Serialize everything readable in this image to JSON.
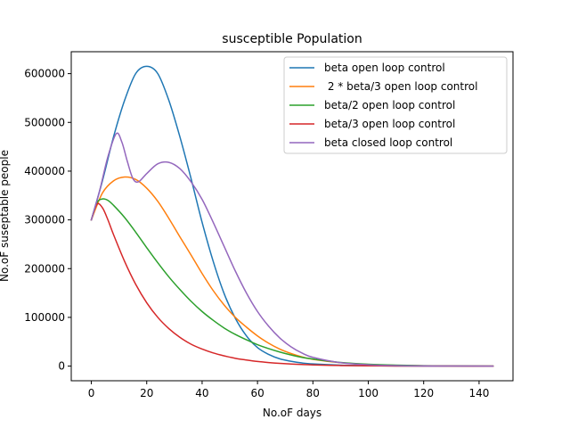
{
  "chart_data": {
    "type": "line",
    "title": "susceptible Population",
    "xlabel": "No.oF days",
    "ylabel": "No.oF suseptable people",
    "xlim": [
      -7.25,
      152.25
    ],
    "ylim": [
      -30000,
      645000
    ],
    "xticks": [
      0,
      20,
      40,
      60,
      80,
      100,
      120,
      140
    ],
    "yticks": [
      0,
      100000,
      200000,
      300000,
      400000,
      500000,
      600000
    ],
    "xtick_labels": [
      "0",
      "20",
      "40",
      "60",
      "80",
      "100",
      "120",
      "140"
    ],
    "ytick_labels": [
      "0",
      "100000",
      "200000",
      "300000",
      "400000",
      "500000",
      "600000"
    ],
    "grid": false,
    "legend_position": "upper right",
    "series": [
      {
        "name": "beta open loop control",
        "color": "#1f77b4",
        "x": [
          0,
          4,
          8,
          12,
          16,
          20,
          24,
          28,
          32,
          36,
          40,
          44,
          48,
          52,
          56,
          60,
          64,
          68,
          72,
          76,
          80,
          90,
          100,
          110,
          120,
          130,
          145
        ],
        "y": [
          300000,
          380000,
          470000,
          545000,
          600000,
          615000,
          600000,
          545000,
          470000,
          385000,
          295000,
          215000,
          148000,
          98000,
          62000,
          38000,
          24000,
          15000,
          10000,
          6500,
          4500,
          2000,
          900,
          400,
          200,
          100,
          0
        ]
      },
      {
        "name": " 2 * beta/3 open loop control",
        "color": "#ff7f0e",
        "x": [
          0,
          4,
          8,
          12,
          16,
          20,
          24,
          28,
          32,
          36,
          40,
          44,
          48,
          52,
          56,
          60,
          64,
          68,
          72,
          76,
          80,
          90,
          100,
          110,
          120,
          130,
          145
        ],
        "y": [
          300000,
          355000,
          380000,
          388000,
          383000,
          365000,
          338000,
          303000,
          265000,
          228000,
          190000,
          155000,
          125000,
          100000,
          80000,
          62000,
          47000,
          35000,
          26000,
          19000,
          14000,
          7000,
          3300,
          1500,
          700,
          300,
          0
        ]
      },
      {
        "name": "beta/2 open loop control",
        "color": "#2ca02c",
        "x": [
          0,
          2,
          4,
          6,
          8,
          12,
          16,
          20,
          24,
          28,
          32,
          36,
          40,
          44,
          48,
          52,
          56,
          60,
          64,
          68,
          72,
          76,
          80,
          90,
          100,
          110,
          120,
          130,
          145
        ],
        "y": [
          300000,
          335000,
          343000,
          340000,
          330000,
          305000,
          275000,
          243000,
          212000,
          183000,
          157000,
          133000,
          112000,
          94000,
          78000,
          65000,
          54000,
          44000,
          36000,
          29000,
          23000,
          18000,
          14500,
          7500,
          3800,
          1900,
          900,
          400,
          0
        ]
      },
      {
        "name": "beta/3 open loop control",
        "color": "#d62728",
        "x": [
          0,
          2,
          4,
          6,
          8,
          12,
          16,
          20,
          24,
          28,
          32,
          36,
          40,
          44,
          48,
          52,
          56,
          60,
          64,
          68,
          72,
          76,
          80,
          90,
          100,
          110,
          120,
          130,
          145
        ],
        "y": [
          300000,
          332000,
          325000,
          300000,
          270000,
          215000,
          168000,
          130000,
          100000,
          77000,
          59000,
          45000,
          35000,
          27000,
          21000,
          16000,
          12500,
          9500,
          7300,
          5600,
          4300,
          3300,
          2500,
          1200,
          600,
          300,
          150,
          80,
          0
        ]
      },
      {
        "name": "beta closed loop control",
        "color": "#9467bd",
        "x": [
          0,
          3,
          6,
          9,
          11,
          13,
          15,
          17,
          20,
          24,
          28,
          32,
          36,
          40,
          44,
          48,
          52,
          56,
          60,
          64,
          68,
          72,
          76,
          80,
          90,
          100,
          110,
          120,
          130,
          145
        ],
        "y": [
          300000,
          360000,
          430000,
          477000,
          460000,
          420000,
          385000,
          378000,
          395000,
          415000,
          418000,
          405000,
          378000,
          342000,
          295000,
          245000,
          195000,
          150000,
          112000,
          82000,
          58000,
          40000,
          27000,
          18000,
          7000,
          2700,
          1000,
          400,
          150,
          0
        ]
      }
    ]
  }
}
